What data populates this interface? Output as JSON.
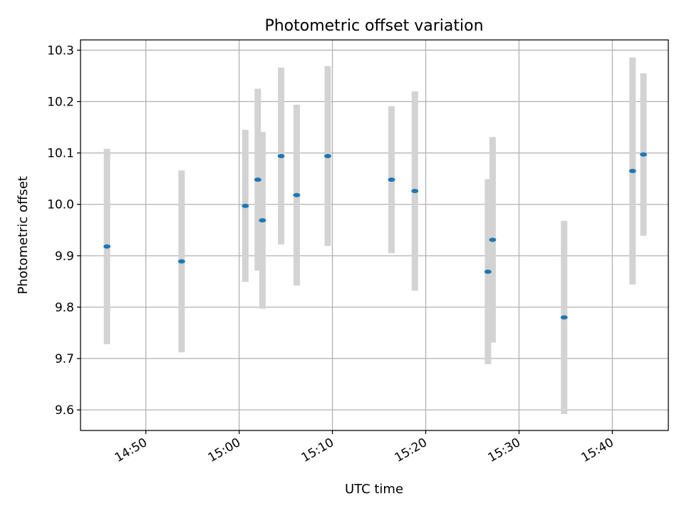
{
  "chart_data": {
    "type": "scatter",
    "title": "Photometric offset variation",
    "xlabel": "UTC time",
    "ylabel": "Photometric offset",
    "x_ticks": [
      "14:50",
      "15:00",
      "15:10",
      "15:20",
      "15:30",
      "15:40"
    ],
    "y_ticks": [
      "9.6",
      "9.7",
      "9.8",
      "9.9",
      "10.0",
      "10.1",
      "10.2",
      "10.3"
    ],
    "xlim": [
      "14:43",
      "15:46"
    ],
    "ylim": [
      9.56,
      10.32
    ],
    "grid": true,
    "colors": {
      "marker": "#1f77b4",
      "errorbar": "#d3d3d3",
      "grid": "#b0b0b0"
    },
    "points": [
      {
        "time": "14:45:50",
        "y": 9.918,
        "yerr": 0.19
      },
      {
        "time": "14:53:50",
        "y": 9.889,
        "yerr": 0.177
      },
      {
        "time": "15:00:40",
        "y": 9.997,
        "yerr": 0.148
      },
      {
        "time": "15:02:00",
        "y": 10.048,
        "yerr": 0.177
      },
      {
        "time": "15:02:30",
        "y": 9.969,
        "yerr": 0.172
      },
      {
        "time": "15:04:30",
        "y": 10.094,
        "yerr": 0.172
      },
      {
        "time": "15:06:10",
        "y": 10.018,
        "yerr": 0.176
      },
      {
        "time": "15:09:30",
        "y": 10.094,
        "yerr": 0.175
      },
      {
        "time": "15:16:20",
        "y": 10.048,
        "yerr": 0.143
      },
      {
        "time": "15:18:50",
        "y": 10.026,
        "yerr": 0.194
      },
      {
        "time": "15:26:40",
        "y": 9.869,
        "yerr": 0.18
      },
      {
        "time": "15:27:10",
        "y": 9.931,
        "yerr": 0.2
      },
      {
        "time": "15:34:50",
        "y": 9.78,
        "yerr": 0.188
      },
      {
        "time": "15:42:10",
        "y": 10.065,
        "yerr": 0.221
      },
      {
        "time": "15:43:20",
        "y": 10.097,
        "yerr": 0.158
      }
    ]
  }
}
